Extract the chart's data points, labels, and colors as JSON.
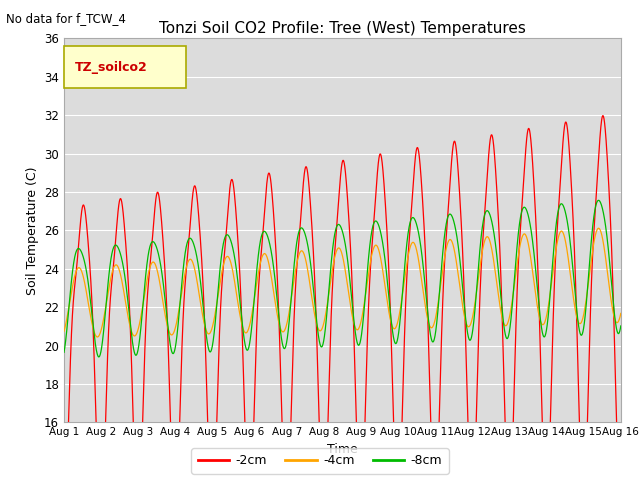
{
  "title": "Tonzi Soil CO2 Profile: Tree (West) Temperatures",
  "no_data_text": "No data for f_TCW_4",
  "legend_box_text": "TZ_soilco2",
  "xlabel": "Time",
  "ylabel": "Soil Temperature (C)",
  "ylim": [
    16,
    36
  ],
  "xlim_days": 15,
  "plot_bg": "#dcdcdc",
  "fig_bg": "#ffffff",
  "series": [
    {
      "label": "-2cm",
      "color": "#ff0000"
    },
    {
      "label": "-4cm",
      "color": "#ffa500"
    },
    {
      "label": "-8cm",
      "color": "#00bb00"
    }
  ],
  "n_days": 15,
  "ppd": 288
}
